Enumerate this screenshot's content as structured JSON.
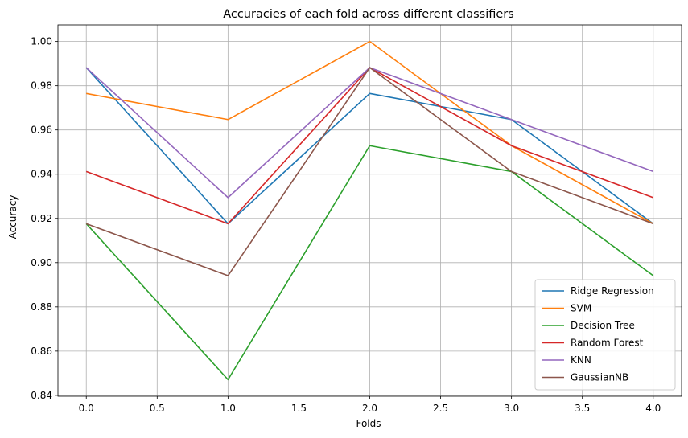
{
  "chart_data": {
    "type": "line",
    "title": "Accuracies of each fold across different classifiers",
    "xlabel": "Folds",
    "ylabel": "Accuracy",
    "x": [
      0,
      1,
      2,
      3,
      4
    ],
    "xlim": [
      -0.2,
      4.2
    ],
    "ylim": [
      0.8396,
      1.0075
    ],
    "xticks": [
      0.0,
      0.5,
      1.0,
      1.5,
      2.0,
      2.5,
      3.0,
      3.5,
      4.0
    ],
    "yticks": [
      0.84,
      0.86,
      0.88,
      0.9,
      0.92,
      0.94,
      0.96,
      0.98,
      1.0
    ],
    "grid": true,
    "legend_position": "lower right",
    "series": [
      {
        "name": "Ridge Regression",
        "color": "#1f77b4",
        "values": [
          0.9882,
          0.9176,
          0.9765,
          0.9647,
          0.9176
        ]
      },
      {
        "name": "SVM",
        "color": "#ff7f0e",
        "values": [
          0.9765,
          0.9647,
          1.0,
          0.9529,
          0.9176
        ]
      },
      {
        "name": "Decision Tree",
        "color": "#2ca02c",
        "values": [
          0.9176,
          0.8471,
          0.9529,
          0.9412,
          0.8941
        ]
      },
      {
        "name": "Random Forest",
        "color": "#d62728",
        "values": [
          0.9412,
          0.9176,
          0.9882,
          0.9529,
          0.9294
        ]
      },
      {
        "name": "KNN",
        "color": "#9467bd",
        "values": [
          0.9882,
          0.9294,
          0.9882,
          0.9647,
          0.9412
        ]
      },
      {
        "name": "GaussianNB",
        "color": "#8c564b",
        "values": [
          0.9176,
          0.8941,
          0.9882,
          0.9412,
          0.9176
        ]
      }
    ]
  }
}
